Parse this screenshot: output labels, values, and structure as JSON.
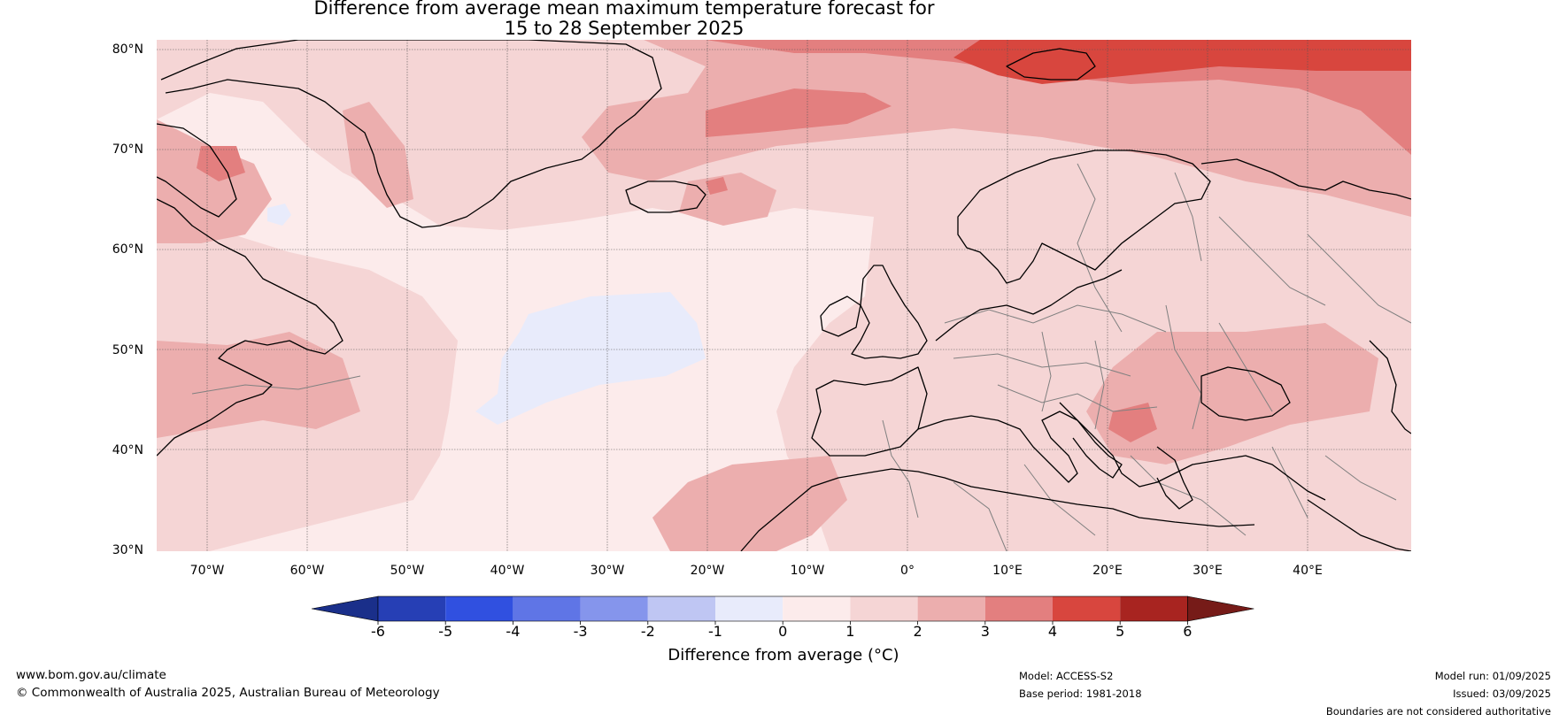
{
  "title": {
    "line1": "Difference from average mean maximum temperature forecast for",
    "line2": "15 to 28 September 2025"
  },
  "map": {
    "latitude_labels": [
      "80°N",
      "70°N",
      "60°N",
      "50°N",
      "40°N",
      "30°N"
    ],
    "longitude_labels": [
      "70°W",
      "60°W",
      "50°W",
      "40°W",
      "30°W",
      "20°W",
      "10°W",
      "0°",
      "10°E",
      "20°E",
      "30°E",
      "40°E"
    ],
    "base_color": "#fcebeb",
    "coastline_color": "#000000",
    "border_color": "#808080"
  },
  "colorbar": {
    "tick_labels": [
      "-6",
      "-5",
      "-4",
      "-3",
      "-2",
      "-1",
      "0",
      "1",
      "2",
      "3",
      "4",
      "5",
      "6"
    ],
    "colors": [
      "#1a2f8a",
      "#263fb5",
      "#3050e0",
      "#5f75e6",
      "#8595ec",
      "#bfc6f3",
      "#e8ebfb",
      "#fcebeb",
      "#f5d5d5",
      "#ecaeae",
      "#e37f7f",
      "#d8463e",
      "#a82420",
      "#761b18"
    ],
    "title": "Difference from average (°C)"
  },
  "footer": {
    "website": "www.bom.gov.au/climate",
    "copyright": "© Commonwealth of Australia 2025, Australian Bureau of Meteorology",
    "model": "Model: ACCESS-S2",
    "base_period": "Base period: 1981-2018",
    "model_run": "Model run: 01/09/2025",
    "issued": "Issued: 03/09/2025",
    "disclaimer": "Boundaries are not considered authoritative"
  }
}
